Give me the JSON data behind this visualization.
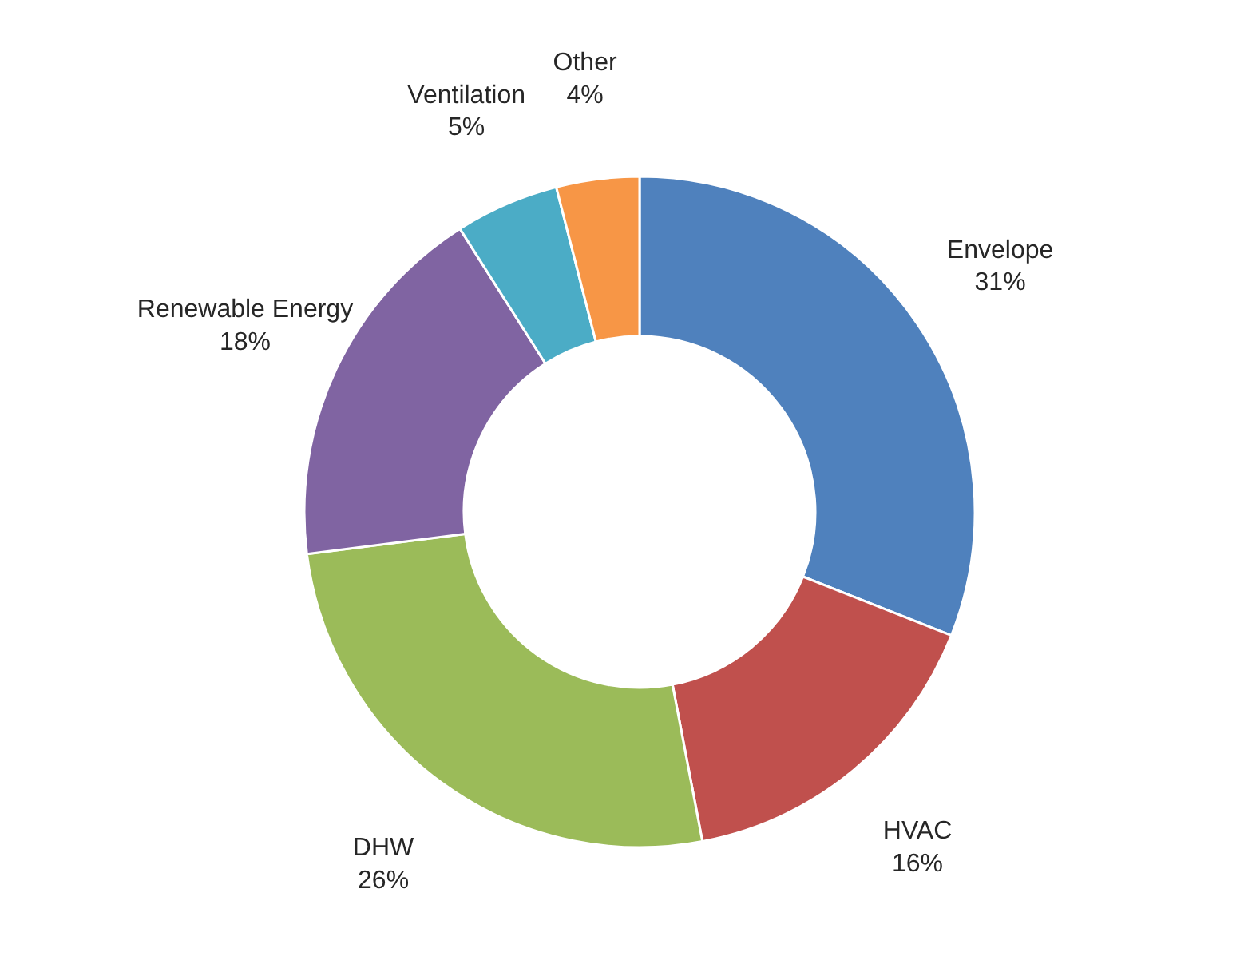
{
  "chart_data": {
    "type": "donut",
    "categories": [
      "Envelope",
      "HVAC",
      "DHW",
      "Renewable Energy",
      "Ventilation",
      "Other"
    ],
    "values": [
      31,
      16,
      26,
      18,
      5,
      4
    ],
    "colors": [
      "#4f81bd",
      "#c0504d",
      "#9bbb59",
      "#8064a2",
      "#4bacc6",
      "#f79646"
    ],
    "value_labels": [
      "31%",
      "16%",
      "26%",
      "18%",
      "5%",
      "4%"
    ],
    "legend": false
  }
}
